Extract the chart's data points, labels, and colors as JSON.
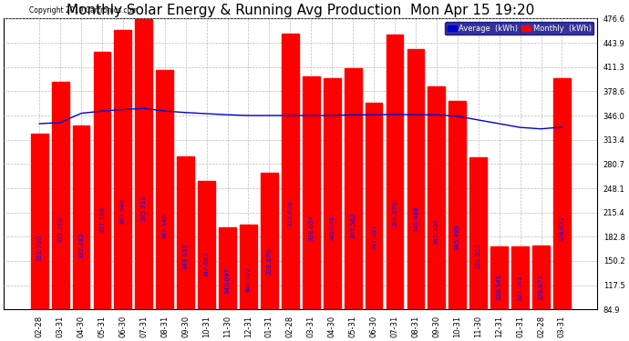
{
  "title": "Monthly Solar Energy & Running Avg Production  Mon Apr 15 19:20",
  "copyright": "Copyright 2019 Cartronics.com",
  "categories": [
    "02-28",
    "03-31",
    "04-30",
    "05-31",
    "06-30",
    "07-31",
    "08-31",
    "09-30",
    "10-31",
    "11-30",
    "12-31",
    "01-31",
    "02-28",
    "03-31",
    "04-30",
    "05-31",
    "06-30",
    "07-31",
    "08-31",
    "09-30",
    "10-31",
    "11-30",
    "12-31",
    "01-31",
    "02-28",
    "03-31"
  ],
  "monthly_values": [
    321.7,
    391.768,
    332.482,
    431.184,
    460.94,
    475.316,
    407.146,
    290.697,
    257.662,
    195.097,
    198.922,
    268.87,
    455.676,
    398.634,
    395.974,
    409.562,
    363.327,
    454.67,
    435.488,
    385.304,
    365.499,
    289.503,
    170.045,
    169.341,
    170.671,
    395.671
  ],
  "avg_line": [
    335.0,
    336.5,
    349.0,
    352.0,
    354.0,
    355.5,
    352.0,
    350.0,
    348.5,
    347.0,
    346.0,
    346.0,
    346.0,
    346.0,
    346.0,
    347.0,
    347.0,
    347.5,
    347.0,
    347.0,
    345.0,
    340.0,
    335.0,
    330.0,
    328.0,
    330.5
  ],
  "bar_labels": [
    "331.700",
    "331.768",
    "332.482",
    "337.184",
    "340.940",
    "345.316",
    "347.146",
    "349.697",
    "347.662",
    "345.097",
    "340.922",
    "338.870",
    "335.676",
    "338.634",
    "340.974",
    "347.562",
    "347.327",
    "344.670",
    "345.488",
    "345.304",
    "345.499",
    "339.503",
    "330.545",
    "327.341",
    "328.671",
    "328.671"
  ],
  "bar_color": "#ff0000",
  "line_color": "#0000cc",
  "background_color": "#ffffff",
  "grid_color": "#bbbbbb",
  "ylabel_right_values": [
    84.9,
    117.5,
    150.2,
    182.8,
    215.4,
    248.1,
    280.7,
    313.4,
    346.0,
    378.6,
    411.3,
    443.9,
    476.6
  ],
  "ylim_min": 84.9,
  "ylim_max": 476.6,
  "title_fontsize": 11,
  "label_fontsize": 5,
  "tick_fontsize": 6,
  "legend_avg_label": "Average  (kWh)",
  "legend_monthly_label": "Monthly  (kWh)"
}
